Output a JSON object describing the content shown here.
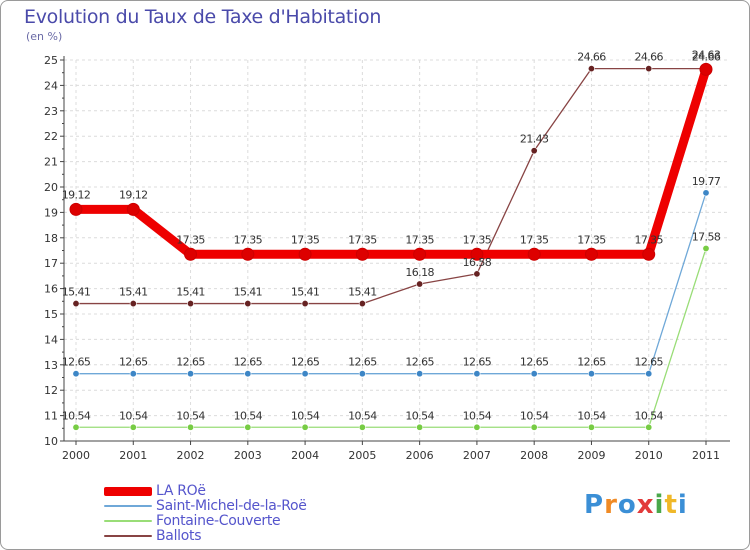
{
  "chart_data": {
    "type": "line",
    "title": "Evolution du Taux de Taxe d'Habitation",
    "subtitle": "(en %)",
    "xlabel": "",
    "ylabel": "(en %)",
    "categories": [
      "2000",
      "2001",
      "2002",
      "2003",
      "2004",
      "2005",
      "2006",
      "2007",
      "2008",
      "2009",
      "2010",
      "2011"
    ],
    "ylim": [
      10,
      25
    ],
    "yticks": [
      10,
      11,
      12,
      13,
      14,
      15,
      16,
      17,
      18,
      19,
      20,
      21,
      22,
      23,
      24,
      25
    ],
    "grid": true,
    "legend_position": "bottom-left",
    "series": [
      {
        "name": "LA ROë",
        "color": "#ee0000",
        "dot_color": "#dd0000",
        "line_width": "thick",
        "values": [
          19.12,
          19.12,
          17.35,
          17.35,
          17.35,
          17.35,
          17.35,
          17.35,
          17.35,
          17.35,
          17.35,
          24.63
        ],
        "labels": [
          "19.12",
          "19.12",
          "17.35",
          "17.35",
          "17.35",
          "17.35",
          "17.35",
          "17.35",
          "17.35",
          "17.35",
          "17.35",
          "24.63"
        ]
      },
      {
        "name": "Saint-Michel-de-la-Roë",
        "color": "#6fa8d8",
        "dot_color": "#3d86c6",
        "line_width": "thin",
        "values": [
          12.65,
          12.65,
          12.65,
          12.65,
          12.65,
          12.65,
          12.65,
          12.65,
          12.65,
          12.65,
          12.65,
          19.77
        ],
        "labels": [
          "12.65",
          "12.65",
          "12.65",
          "12.65",
          "12.65",
          "12.65",
          "12.65",
          "12.65",
          "12.65",
          "12.65",
          "12.65",
          "19.77"
        ]
      },
      {
        "name": "Fontaine-Couverte",
        "color": "#99dd77",
        "dot_color": "#77cc44",
        "line_width": "thin",
        "values": [
          10.54,
          10.54,
          10.54,
          10.54,
          10.54,
          10.54,
          10.54,
          10.54,
          10.54,
          10.54,
          10.54,
          17.58
        ],
        "labels": [
          "10.54",
          "10.54",
          "10.54",
          "10.54",
          "10.54",
          "10.54",
          "10.54",
          "10.54",
          "10.54",
          "10.54",
          "10.54",
          "17.58"
        ]
      },
      {
        "name": "Ballots",
        "color": "#884444",
        "dot_color": "#662222",
        "line_width": "thin",
        "values": [
          15.41,
          15.41,
          15.41,
          15.41,
          15.41,
          15.41,
          16.18,
          16.58,
          21.43,
          24.66,
          24.66,
          24.66
        ],
        "labels": [
          "15.41",
          "15.41",
          "15.41",
          "15.41",
          "15.41",
          "15.41",
          "16.18",
          "16.58",
          "21.43",
          "24.66",
          "24.66",
          "24.66"
        ]
      }
    ]
  },
  "brand": {
    "letters": [
      "P",
      "r",
      "o",
      "x",
      "i",
      "t",
      "i"
    ],
    "colors": [
      "#3b8fd6",
      "#f08a24",
      "#3b8fd6",
      "#e23a3a",
      "#4aa84a",
      "#f0b828",
      "#3b8fd6"
    ]
  }
}
